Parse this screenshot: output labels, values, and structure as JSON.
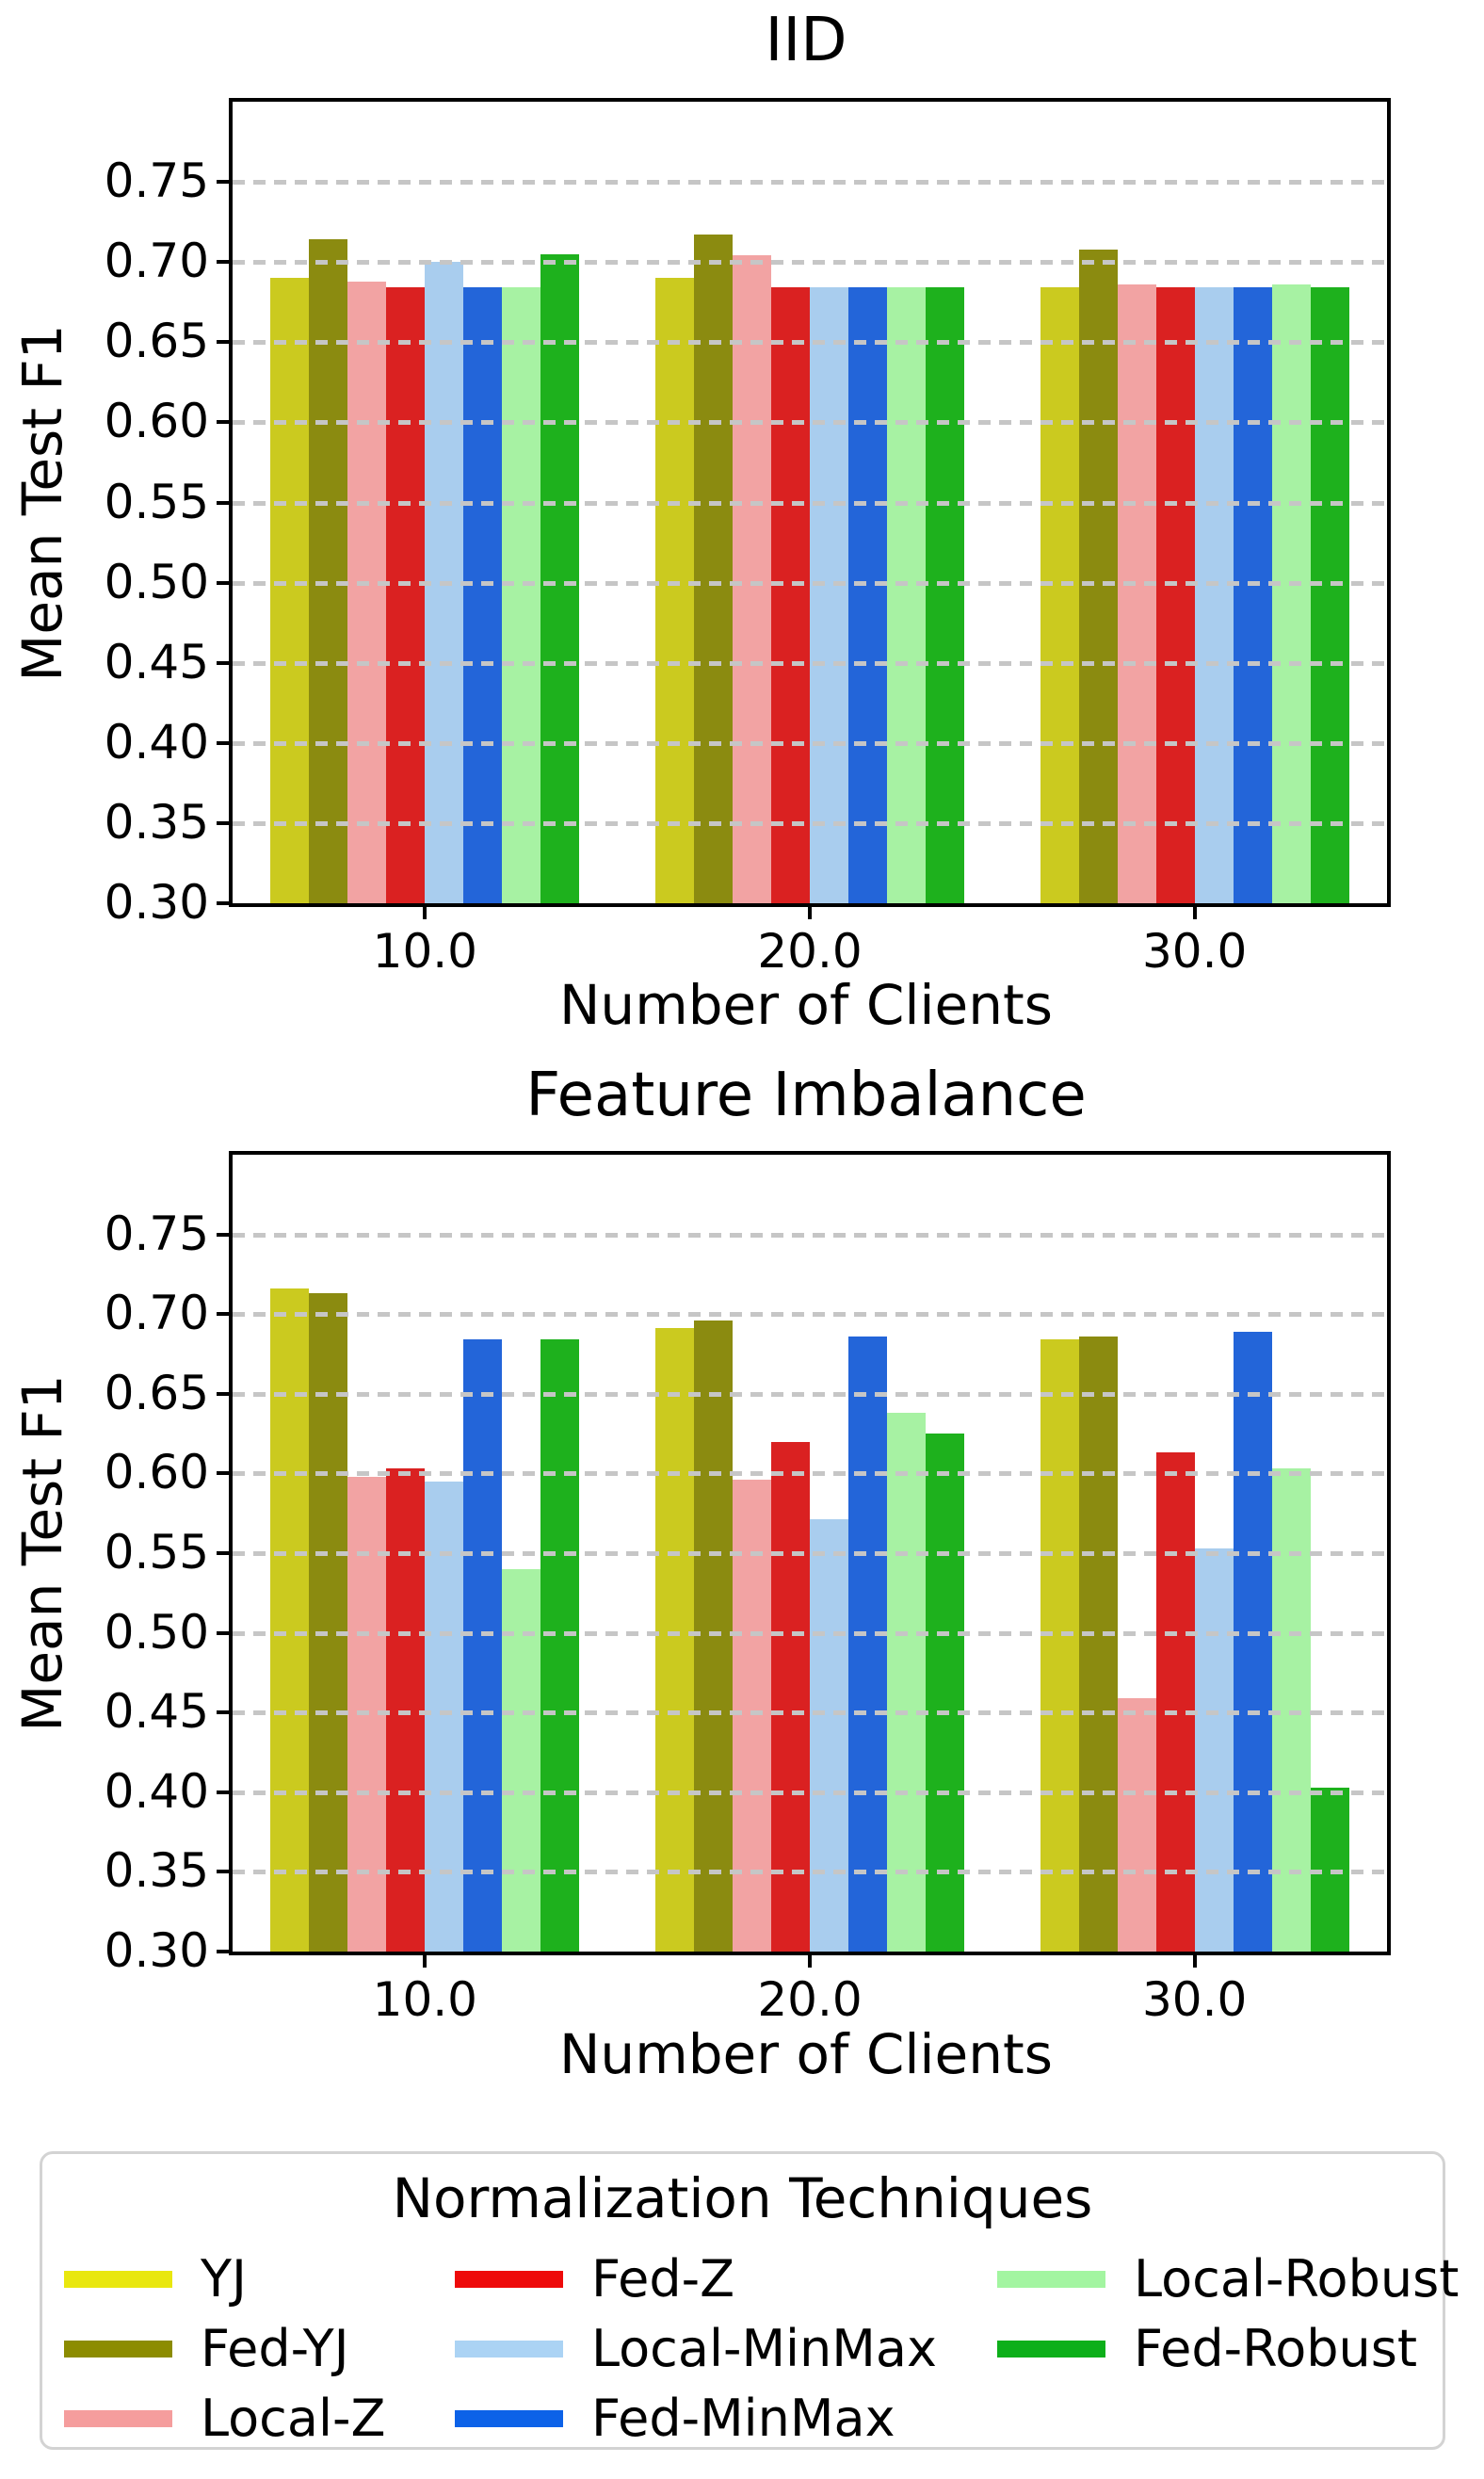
{
  "figure": {
    "background": "#ffffff",
    "axis_color": "#000000",
    "gridline_color": "#c6c6c6"
  },
  "series_styles": {
    "YJ": {
      "bar_color": "#cbca1f",
      "legend_color": "#e9e70f"
    },
    "Fed-YJ": {
      "bar_color": "#8b8b10",
      "legend_color": "#8c8c00"
    },
    "Local-Z": {
      "bar_color": "#f2a3a3",
      "legend_color": "#f59d9d"
    },
    "Fed-Z": {
      "bar_color": "#da2121",
      "legend_color": "#ee0a0a"
    },
    "Local-MinMax": {
      "bar_color": "#a9cdee",
      "legend_color": "#abd3f4"
    },
    "Fed-MinMax": {
      "bar_color": "#2365d9",
      "legend_color": "#0c62e8"
    },
    "Local-Robust": {
      "bar_color": "#a7f2a3",
      "legend_color": "#a3f5a1"
    },
    "Fed-Robust": {
      "bar_color": "#1eb11d",
      "legend_color": "#0daf1a"
    }
  },
  "legend": {
    "title": "Normalization Techniques",
    "columns": [
      [
        "YJ",
        "Fed-YJ",
        "Local-Z"
      ],
      [
        "Fed-Z",
        "Local-MinMax",
        "Fed-MinMax"
      ],
      [
        "Local-Robust",
        "Fed-Robust"
      ]
    ]
  },
  "chart_data": [
    {
      "type": "bar",
      "title": "IID",
      "xlabel": "Number of Clients",
      "ylabel": "Mean Test F1",
      "categories": [
        "10.0",
        "20.0",
        "30.0"
      ],
      "ylim": [
        0.3,
        0.8
      ],
      "yticks": [
        "0.75",
        "0.70",
        "0.65",
        "0.60",
        "0.55",
        "0.50",
        "0.45",
        "0.40",
        "0.35",
        "0.30"
      ],
      "grid": "dashed-horizontal",
      "series": [
        {
          "name": "YJ",
          "values": [
            0.69,
            0.69,
            0.684
          ]
        },
        {
          "name": "Fed-YJ",
          "values": [
            0.714,
            0.717,
            0.708
          ]
        },
        {
          "name": "Local-Z",
          "values": [
            0.688,
            0.704,
            0.686
          ]
        },
        {
          "name": "Fed-Z",
          "values": [
            0.684,
            0.684,
            0.684
          ]
        },
        {
          "name": "Local-MinMax",
          "values": [
            0.7,
            0.684,
            0.684
          ]
        },
        {
          "name": "Fed-MinMax",
          "values": [
            0.684,
            0.684,
            0.684
          ]
        },
        {
          "name": "Local-Robust",
          "values": [
            0.684,
            0.684,
            0.686
          ]
        },
        {
          "name": "Fed-Robust",
          "values": [
            0.705,
            0.684,
            0.684
          ]
        }
      ]
    },
    {
      "type": "bar",
      "title": "Feature Imbalance",
      "xlabel": "Number of Clients",
      "ylabel": "Mean Test F1",
      "categories": [
        "10.0",
        "20.0",
        "30.0"
      ],
      "ylim": [
        0.3,
        0.8
      ],
      "yticks": [
        "0.75",
        "0.70",
        "0.65",
        "0.60",
        "0.55",
        "0.50",
        "0.45",
        "0.40",
        "0.35",
        "0.30"
      ],
      "grid": "dashed-horizontal",
      "series": [
        {
          "name": "YJ",
          "values": [
            0.716,
            0.691,
            0.684
          ]
        },
        {
          "name": "Fed-YJ",
          "values": [
            0.713,
            0.696,
            0.686
          ]
        },
        {
          "name": "Local-Z",
          "values": [
            0.598,
            0.596,
            0.459
          ]
        },
        {
          "name": "Fed-Z",
          "values": [
            0.603,
            0.62,
            0.613
          ]
        },
        {
          "name": "Local-MinMax",
          "values": [
            0.595,
            0.571,
            0.553
          ]
        },
        {
          "name": "Fed-MinMax",
          "values": [
            0.684,
            0.686,
            0.689
          ]
        },
        {
          "name": "Local-Robust",
          "values": [
            0.54,
            0.638,
            0.603
          ]
        },
        {
          "name": "Fed-Robust",
          "values": [
            0.684,
            0.625,
            0.403
          ]
        }
      ]
    }
  ]
}
